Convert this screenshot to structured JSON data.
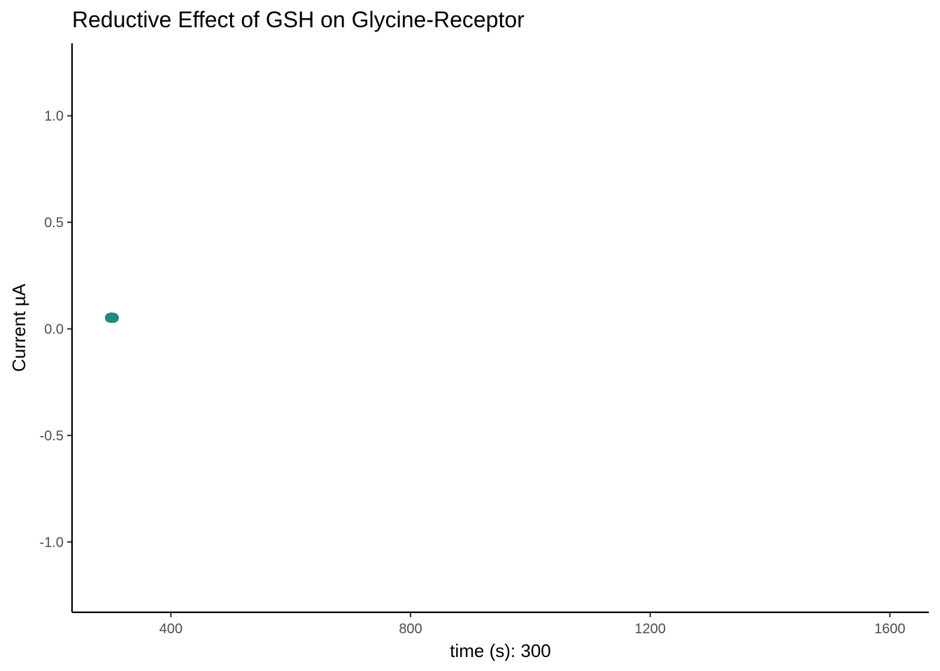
{
  "chart_data": {
    "type": "scatter",
    "title": "Reductive Effect of GSH on Glycine-Receptor",
    "xlabel": "time (s): 300",
    "ylabel": "Current µA",
    "xlim": [
      235,
      1665
    ],
    "ylim": [
      -1.33,
      1.34
    ],
    "x_ticks": [
      {
        "value": 400,
        "label": "400"
      },
      {
        "value": 800,
        "label": "800"
      },
      {
        "value": 1200,
        "label": "1200"
      },
      {
        "value": 1600,
        "label": "1600"
      }
    ],
    "y_ticks": [
      {
        "value": -1.0,
        "label": "-1.0"
      },
      {
        "value": -0.5,
        "label": "-0.5"
      },
      {
        "value": 0.0,
        "label": "0.0"
      },
      {
        "value": 0.5,
        "label": "0.5"
      },
      {
        "value": 1.0,
        "label": "1.0"
      }
    ],
    "point_color": "#21897e",
    "points": [
      {
        "x": 298,
        "y": 0.052
      },
      {
        "x": 299,
        "y": 0.053
      },
      {
        "x": 300,
        "y": 0.051
      },
      {
        "x": 301,
        "y": 0.054
      },
      {
        "x": 302,
        "y": 0.052
      },
      {
        "x": 303,
        "y": 0.053
      },
      {
        "x": 304,
        "y": 0.051
      },
      {
        "x": 305,
        "y": 0.052
      }
    ],
    "grid": false,
    "legend": "none"
  }
}
